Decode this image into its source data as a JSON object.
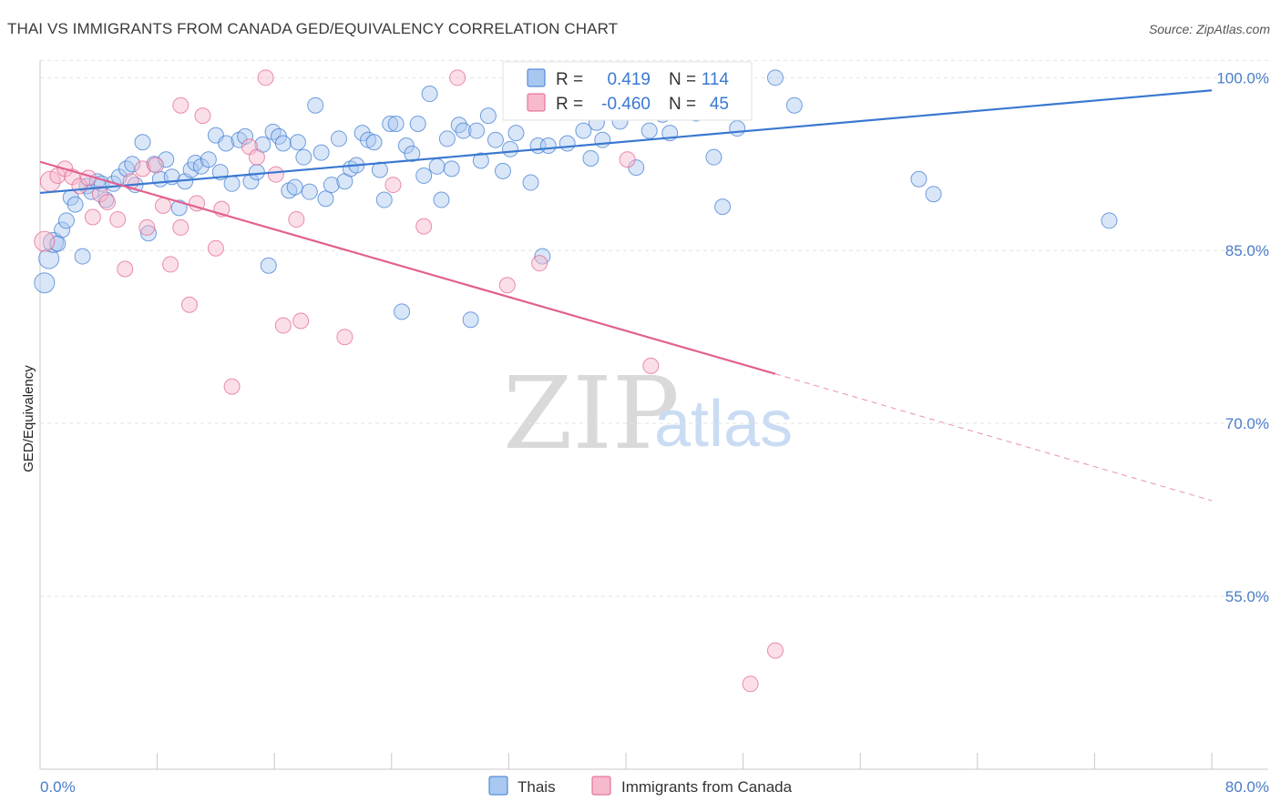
{
  "title": "THAI VS IMMIGRANTS FROM CANADA GED/EQUIVALENCY CORRELATION CHART",
  "source": "Source: ZipAtlas.com",
  "watermark": {
    "zip": "ZIP",
    "atlas": "atlas"
  },
  "colors": {
    "blue": "#3a78d0",
    "pink": "#e2608e",
    "blue_fill": "#a9c8f0",
    "pink_fill": "#f7b9cc"
  },
  "legend_top": {
    "rows": [
      {
        "r_label": "R =",
        "r_value": "0.419",
        "n_label": "N =",
        "n_value": "114"
      },
      {
        "r_label": "R =",
        "r_value": "-0.460",
        "n_label": "N =",
        "n_value": "45"
      }
    ]
  },
  "chart_data": {
    "type": "scatter",
    "title": "THAI VS IMMIGRANTS FROM CANADA GED/EQUIVALENCY CORRELATION CHART",
    "xlabel": "",
    "ylabel": "GED/Equivalency",
    "xlim": [
      0,
      80
    ],
    "ylim": [
      40,
      102
    ],
    "x_tick_labels": [
      "0.0%",
      "80.0%"
    ],
    "y_ticks": [
      55,
      70,
      85,
      100
    ],
    "y_tick_labels": [
      "55.0%",
      "70.0%",
      "85.0%",
      "100.0%"
    ],
    "legend_position": "bottom-center",
    "grid": true,
    "series": [
      {
        "name": "Thais",
        "color": "#3a78d0",
        "r": 0.419,
        "n": 114,
        "trend": {
          "x": [
            0,
            80
          ],
          "y": [
            90.0,
            98.9
          ]
        },
        "points": [
          [
            0.3,
            82.2
          ],
          [
            0.6,
            84.3
          ],
          [
            0.9,
            85.7
          ],
          [
            1.2,
            85.6
          ],
          [
            1.5,
            86.8
          ],
          [
            1.8,
            87.6
          ],
          [
            2.1,
            89.6
          ],
          [
            2.4,
            89.0
          ],
          [
            2.9,
            84.5
          ],
          [
            3.2,
            90.6
          ],
          [
            3.5,
            90.1
          ],
          [
            3.9,
            91.0
          ],
          [
            4.2,
            90.8
          ],
          [
            4.5,
            89.4
          ],
          [
            5.0,
            90.8
          ],
          [
            5.4,
            91.4
          ],
          [
            5.9,
            92.1
          ],
          [
            6.3,
            92.5
          ],
          [
            6.5,
            90.7
          ],
          [
            7.0,
            94.4
          ],
          [
            7.4,
            86.5
          ],
          [
            7.8,
            92.5
          ],
          [
            8.2,
            91.2
          ],
          [
            8.6,
            92.9
          ],
          [
            9.0,
            91.4
          ],
          [
            9.5,
            88.7
          ],
          [
            9.9,
            91.0
          ],
          [
            10.3,
            92.0
          ],
          [
            10.6,
            92.6
          ],
          [
            11.0,
            92.3
          ],
          [
            11.5,
            92.9
          ],
          [
            12.0,
            95.0
          ],
          [
            12.3,
            91.8
          ],
          [
            12.7,
            94.3
          ],
          [
            13.1,
            90.8
          ],
          [
            13.6,
            94.6
          ],
          [
            14.0,
            94.9
          ],
          [
            14.4,
            91.0
          ],
          [
            14.8,
            91.8
          ],
          [
            15.2,
            94.2
          ],
          [
            15.6,
            83.7
          ],
          [
            15.9,
            95.3
          ],
          [
            16.3,
            94.9
          ],
          [
            16.6,
            94.3
          ],
          [
            17.0,
            90.2
          ],
          [
            17.4,
            90.5
          ],
          [
            17.6,
            94.4
          ],
          [
            18.0,
            93.1
          ],
          [
            18.4,
            90.1
          ],
          [
            18.8,
            97.6
          ],
          [
            19.2,
            93.5
          ],
          [
            19.5,
            89.5
          ],
          [
            19.9,
            90.7
          ],
          [
            20.4,
            94.7
          ],
          [
            20.8,
            91.0
          ],
          [
            21.2,
            92.1
          ],
          [
            21.6,
            92.4
          ],
          [
            22.0,
            95.2
          ],
          [
            22.4,
            94.6
          ],
          [
            22.8,
            94.4
          ],
          [
            23.2,
            92.0
          ],
          [
            23.5,
            89.4
          ],
          [
            23.9,
            96.0
          ],
          [
            24.3,
            96.0
          ],
          [
            24.7,
            79.7
          ],
          [
            25.0,
            94.1
          ],
          [
            25.4,
            93.4
          ],
          [
            25.8,
            96.0
          ],
          [
            26.2,
            91.5
          ],
          [
            26.6,
            98.6
          ],
          [
            27.1,
            92.3
          ],
          [
            27.4,
            89.4
          ],
          [
            27.8,
            94.7
          ],
          [
            28.1,
            92.1
          ],
          [
            28.6,
            95.9
          ],
          [
            28.9,
            95.4
          ],
          [
            29.4,
            79.0
          ],
          [
            29.8,
            95.4
          ],
          [
            30.1,
            92.8
          ],
          [
            30.6,
            96.7
          ],
          [
            31.1,
            94.6
          ],
          [
            31.6,
            91.9
          ],
          [
            32.1,
            93.8
          ],
          [
            32.5,
            95.2
          ],
          [
            33.0,
            98.3
          ],
          [
            33.5,
            90.9
          ],
          [
            34.0,
            94.1
          ],
          [
            34.3,
            84.5
          ],
          [
            34.7,
            94.1
          ],
          [
            35.2,
            97.4
          ],
          [
            35.6,
            98.3
          ],
          [
            36.0,
            94.3
          ],
          [
            36.5,
            99.0
          ],
          [
            37.1,
            95.4
          ],
          [
            37.6,
            93.0
          ],
          [
            38.0,
            96.1
          ],
          [
            38.4,
            94.6
          ],
          [
            39.0,
            97.1
          ],
          [
            39.6,
            96.2
          ],
          [
            40.1,
            98.6
          ],
          [
            40.7,
            92.2
          ],
          [
            41.6,
            95.4
          ],
          [
            42.1,
            97.0
          ],
          [
            42.5,
            96.8
          ],
          [
            43.0,
            95.2
          ],
          [
            43.7,
            98.3
          ],
          [
            44.2,
            97.9
          ],
          [
            44.8,
            96.9
          ],
          [
            46.0,
            93.1
          ],
          [
            46.6,
            88.8
          ],
          [
            47.6,
            95.6
          ],
          [
            50.2,
            100.0
          ],
          [
            51.5,
            97.6
          ],
          [
            60.0,
            91.2
          ],
          [
            61.0,
            89.9
          ],
          [
            73.0,
            87.6
          ]
        ]
      },
      {
        "name": "Immigrants from Canada",
        "color": "#e2608e",
        "r": -0.46,
        "n": 45,
        "trend": {
          "x": [
            0,
            50.2
          ],
          "y": [
            92.7,
            74.3
          ],
          "dashed_extension": {
            "x": [
              50.2,
              80
            ],
            "y": [
              74.3,
              63.3
            ]
          }
        },
        "points": [
          [
            0.3,
            85.8
          ],
          [
            0.7,
            91.0
          ],
          [
            1.2,
            91.5
          ],
          [
            1.7,
            92.1
          ],
          [
            2.2,
            91.4
          ],
          [
            2.7,
            90.6
          ],
          [
            3.3,
            91.3
          ],
          [
            3.6,
            87.9
          ],
          [
            4.1,
            89.9
          ],
          [
            4.6,
            89.2
          ],
          [
            5.3,
            87.7
          ],
          [
            5.8,
            83.4
          ],
          [
            6.2,
            91.0
          ],
          [
            7.0,
            92.1
          ],
          [
            7.3,
            87.0
          ],
          [
            7.9,
            92.4
          ],
          [
            8.4,
            88.9
          ],
          [
            8.9,
            83.8
          ],
          [
            9.6,
            87.0
          ],
          [
            9.6,
            97.6
          ],
          [
            10.2,
            80.3
          ],
          [
            10.7,
            89.1
          ],
          [
            11.1,
            96.7
          ],
          [
            12.0,
            85.2
          ],
          [
            12.4,
            88.6
          ],
          [
            13.1,
            73.2
          ],
          [
            14.3,
            94.0
          ],
          [
            14.8,
            93.1
          ],
          [
            15.4,
            100.0
          ],
          [
            16.1,
            91.6
          ],
          [
            16.6,
            78.5
          ],
          [
            17.5,
            87.7
          ],
          [
            17.8,
            78.9
          ],
          [
            20.8,
            77.5
          ],
          [
            24.1,
            90.7
          ],
          [
            26.2,
            87.1
          ],
          [
            28.5,
            100.0
          ],
          [
            31.9,
            82.0
          ],
          [
            32.2,
            100.0
          ],
          [
            33.0,
            100.0
          ],
          [
            34.1,
            83.9
          ],
          [
            40.1,
            92.9
          ],
          [
            41.7,
            75.0
          ],
          [
            48.5,
            47.4
          ],
          [
            50.2,
            50.3
          ]
        ]
      }
    ]
  }
}
